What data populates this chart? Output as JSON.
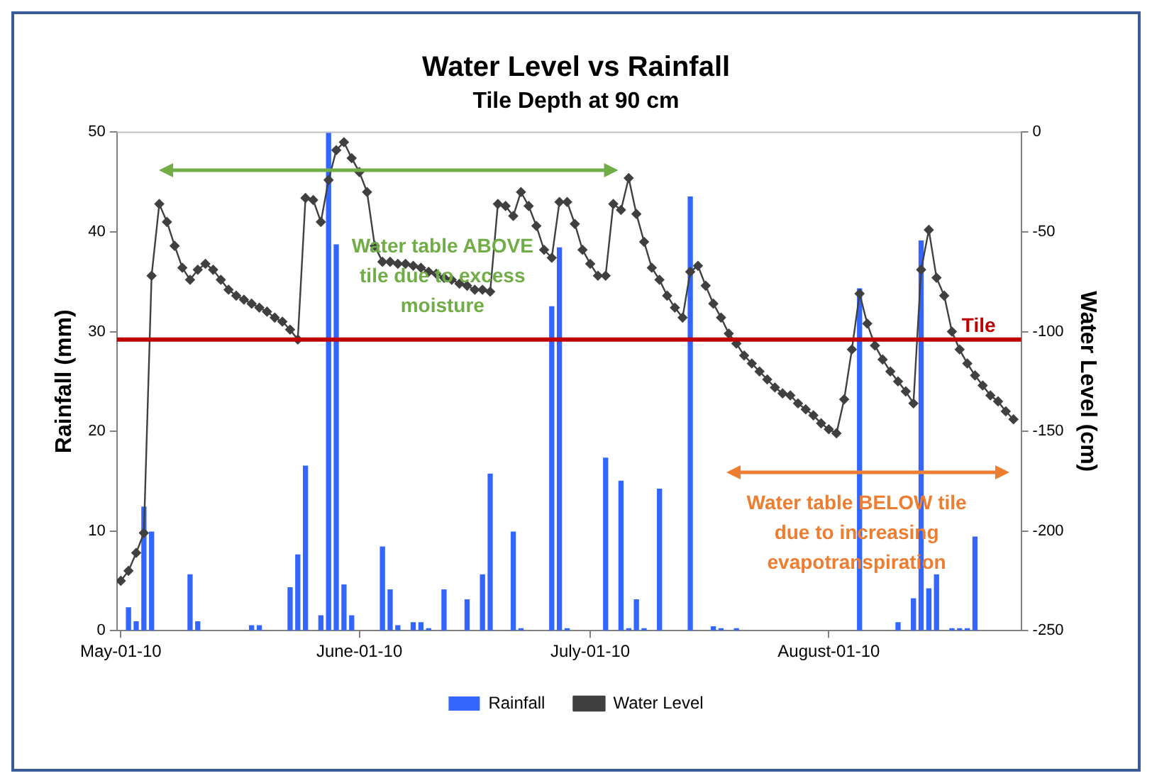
{
  "chart_data": {
    "type": "bar",
    "title": "Water Level vs Rainfall",
    "subtitle": "Tile Depth at 90 cm",
    "ylabel": "Rainfall (mm)",
    "y2label": "Water Level (cm)",
    "xlim": [
      "2010-04-30T12:00",
      "2010-08-26"
    ],
    "xticks": [
      {
        "value": "2010-05-01",
        "label": "May-01-10"
      },
      {
        "value": "2010-06-01",
        "label": "June-01-10"
      },
      {
        "value": "2010-07-01",
        "label": "July-01-10"
      },
      {
        "value": "2010-08-01",
        "label": "August-01-10"
      }
    ],
    "ylim": [
      0,
      50
    ],
    "yticks": [
      0,
      10,
      20,
      30,
      40,
      50
    ],
    "y2lim": [
      -250,
      0
    ],
    "y2ticks": [
      0,
      -50,
      -100,
      -150,
      -200,
      -250
    ],
    "grid": false,
    "legend": "bottom",
    "marker": "diamond",
    "ref_lines": [
      {
        "axis": "y2",
        "value": -104,
        "label": "Tile",
        "color": "#c00000"
      }
    ],
    "annotations": [
      "Water table ABOVE tile due to excess moisture",
      "Water table BELOW tile due to increasing evapotranspiration"
    ],
    "series": [
      {
        "name": "Rainfall",
        "color": "#3366ff",
        "x": [
          "2010-05-02",
          "2010-05-03",
          "2010-05-04",
          "2010-05-05",
          "2010-05-10",
          "2010-05-11",
          "2010-05-18",
          "2010-05-19",
          "2010-05-23",
          "2010-05-24",
          "2010-05-25",
          "2010-05-27",
          "2010-05-28",
          "2010-05-29",
          "2010-05-30",
          "2010-05-31",
          "2010-06-04",
          "2010-06-05",
          "2010-06-06",
          "2010-06-08",
          "2010-06-09",
          "2010-06-10",
          "2010-06-12",
          "2010-06-15",
          "2010-06-17",
          "2010-06-18",
          "2010-06-21",
          "2010-06-22",
          "2010-06-26",
          "2010-06-27",
          "2010-06-28",
          "2010-07-03",
          "2010-07-05",
          "2010-07-06",
          "2010-07-07",
          "2010-07-08",
          "2010-07-10",
          "2010-07-14",
          "2010-07-17",
          "2010-07-18",
          "2010-07-20",
          "2010-08-05",
          "2010-08-10",
          "2010-08-12",
          "2010-08-13",
          "2010-08-14",
          "2010-08-15",
          "2010-08-17",
          "2010-08-18",
          "2010-08-19",
          "2010-08-20"
        ],
        "values": [
          2.3,
          0.9,
          12.4,
          9.9,
          5.6,
          0.9,
          0.5,
          0.5,
          4.3,
          7.6,
          16.5,
          1.5,
          50,
          38.7,
          4.6,
          1.5,
          8.4,
          4.1,
          0.5,
          0.8,
          0.8,
          0.2,
          4.1,
          3.1,
          5.6,
          15.7,
          9.9,
          0.2,
          32.5,
          38.4,
          0.2,
          17.3,
          15,
          0.2,
          3.1,
          0.2,
          14.2,
          43.5,
          0.4,
          0.2,
          0.2,
          34.3,
          0.8,
          3.2,
          39.1,
          4.2,
          5.6,
          0.2,
          0.2,
          0.2,
          9.4
        ]
      },
      {
        "name": "Water Level",
        "type": "line",
        "axis": "y2",
        "color": "#404040",
        "x": [
          "2010-05-01",
          "2010-05-02",
          "2010-05-03",
          "2010-05-04",
          "2010-05-05",
          "2010-05-06",
          "2010-05-07",
          "2010-05-08",
          "2010-05-09",
          "2010-05-10",
          "2010-05-11",
          "2010-05-12",
          "2010-05-13",
          "2010-05-14",
          "2010-05-15",
          "2010-05-16",
          "2010-05-17",
          "2010-05-18",
          "2010-05-19",
          "2010-05-20",
          "2010-05-21",
          "2010-05-22",
          "2010-05-23",
          "2010-05-24",
          "2010-05-25",
          "2010-05-26",
          "2010-05-27",
          "2010-05-28",
          "2010-05-29",
          "2010-05-30",
          "2010-05-31",
          "2010-06-01",
          "2010-06-02",
          "2010-06-03",
          "2010-06-04",
          "2010-06-05",
          "2010-06-06",
          "2010-06-07",
          "2010-06-08",
          "2010-06-09",
          "2010-06-10",
          "2010-06-11",
          "2010-06-12",
          "2010-06-13",
          "2010-06-14",
          "2010-06-15",
          "2010-06-16",
          "2010-06-17",
          "2010-06-18",
          "2010-06-19",
          "2010-06-20",
          "2010-06-21",
          "2010-06-22",
          "2010-06-23",
          "2010-06-24",
          "2010-06-25",
          "2010-06-26",
          "2010-06-27",
          "2010-06-28",
          "2010-06-29",
          "2010-06-30",
          "2010-07-01",
          "2010-07-02",
          "2010-07-03",
          "2010-07-04",
          "2010-07-05",
          "2010-07-06",
          "2010-07-07",
          "2010-07-08",
          "2010-07-09",
          "2010-07-10",
          "2010-07-11",
          "2010-07-12",
          "2010-07-13",
          "2010-07-14",
          "2010-07-15",
          "2010-07-16",
          "2010-07-17",
          "2010-07-18",
          "2010-07-19",
          "2010-07-20",
          "2010-07-21",
          "2010-07-22",
          "2010-07-23",
          "2010-07-24",
          "2010-07-25",
          "2010-07-26",
          "2010-07-27",
          "2010-07-28",
          "2010-07-29",
          "2010-07-30",
          "2010-07-31",
          "2010-08-01",
          "2010-08-02",
          "2010-08-03",
          "2010-08-04",
          "2010-08-05",
          "2010-08-06",
          "2010-08-07",
          "2010-08-08",
          "2010-08-09",
          "2010-08-10",
          "2010-08-11",
          "2010-08-12",
          "2010-08-13",
          "2010-08-14",
          "2010-08-15",
          "2010-08-16",
          "2010-08-17",
          "2010-08-18",
          "2010-08-19",
          "2010-08-20",
          "2010-08-21",
          "2010-08-22",
          "2010-08-23",
          "2010-08-24",
          "2010-08-25"
        ],
        "values": [
          -225,
          -220,
          -211,
          -201,
          -72,
          -36,
          -45,
          -57,
          -68,
          -74,
          -69,
          -66,
          -69,
          -74,
          -79,
          -82,
          -84,
          -86,
          -88,
          -90,
          -93,
          -95,
          -99,
          -104,
          -33,
          -34,
          -45,
          -24,
          -9,
          -5,
          -13,
          -20,
          -30,
          -57,
          -65,
          -65,
          -66,
          -66,
          -67,
          -68,
          -70,
          -71,
          -73,
          -74,
          -76,
          -77,
          -79,
          -79,
          -80,
          -36,
          -37,
          -42,
          -30,
          -37,
          -47,
          -59,
          -63,
          -35,
          -35,
          -46,
          -59,
          -66,
          -72,
          -72,
          -36,
          -39,
          -23,
          -41,
          -55,
          -68,
          -74,
          -82,
          -88,
          -93,
          -70,
          -67,
          -77,
          -86,
          -93,
          -101,
          -106,
          -112,
          -116,
          -120,
          -124,
          -128,
          -131,
          -132,
          -136,
          -139,
          -142,
          -146,
          -149,
          -151,
          -134,
          -109,
          -81,
          -96,
          -107,
          -114,
          -120,
          -125,
          -130,
          -136,
          -69,
          -49,
          -73,
          -82,
          -100,
          -109,
          -116,
          -122,
          -127,
          -132,
          -135,
          -140,
          -144
        ]
      }
    ]
  }
}
